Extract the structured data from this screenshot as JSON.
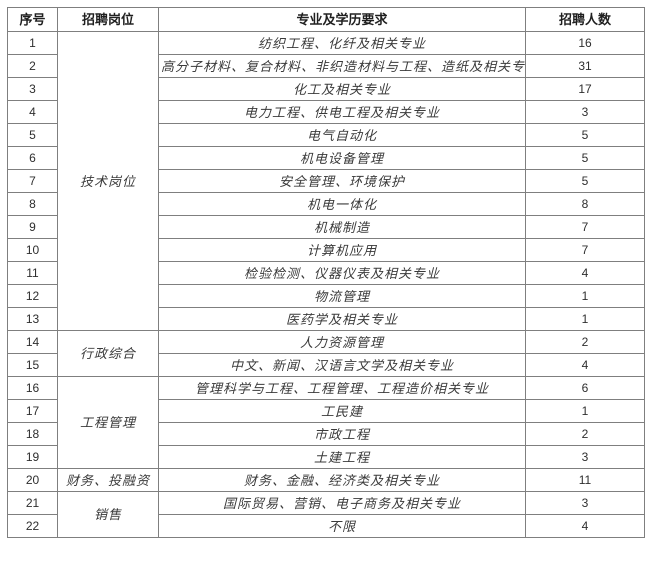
{
  "accent_colors": {
    "border": "#7f7f7f",
    "text": "#333333",
    "background": "#ffffff"
  },
  "table": {
    "headers": {
      "no": "序号",
      "position": "招聘岗位",
      "major": "专业及学历要求",
      "count": "招聘人数"
    },
    "groups": [
      {
        "position": "技术岗位",
        "rows": [
          {
            "no": "1",
            "major": "纺织工程、化纤及相关专业",
            "count": "16"
          },
          {
            "no": "2",
            "major": "高分子材料、复合材料、非织造材料与工程、造纸及相关专业",
            "count": "31"
          },
          {
            "no": "3",
            "major": "化工及相关专业",
            "count": "17"
          },
          {
            "no": "4",
            "major": "电力工程、供电工程及相关专业",
            "count": "3"
          },
          {
            "no": "5",
            "major": "电气自动化",
            "count": "5"
          },
          {
            "no": "6",
            "major": "机电设备管理",
            "count": "5"
          },
          {
            "no": "7",
            "major": "安全管理、环境保护",
            "count": "5"
          },
          {
            "no": "8",
            "major": "机电一体化",
            "count": "8"
          },
          {
            "no": "9",
            "major": "机械制造",
            "count": "7"
          },
          {
            "no": "10",
            "major": "计算机应用",
            "count": "7"
          },
          {
            "no": "11",
            "major": "检验检测、仪器仪表及相关专业",
            "count": "4"
          },
          {
            "no": "12",
            "major": "物流管理",
            "count": "1"
          },
          {
            "no": "13",
            "major": "医药学及相关专业",
            "count": "1"
          }
        ]
      },
      {
        "position": "行政综合",
        "rows": [
          {
            "no": "14",
            "major": "人力资源管理",
            "count": "2"
          },
          {
            "no": "15",
            "major": "中文、新闻、汉语言文学及相关专业",
            "count": "4"
          }
        ]
      },
      {
        "position": "工程管理",
        "rows": [
          {
            "no": "16",
            "major": "管理科学与工程、工程管理、工程造价相关专业",
            "count": "6"
          },
          {
            "no": "17",
            "major": "工民建",
            "count": "1"
          },
          {
            "no": "18",
            "major": "市政工程",
            "count": "2"
          },
          {
            "no": "19",
            "major": "土建工程",
            "count": "3"
          }
        ]
      },
      {
        "position": "财务、投融资",
        "rows": [
          {
            "no": "20",
            "major": "财务、金融、经济类及相关专业",
            "count": "11"
          }
        ]
      },
      {
        "position": "销售",
        "rows": [
          {
            "no": "21",
            "major": "国际贸易、营销、电子商务及相关专业",
            "count": "3"
          },
          {
            "no": "22",
            "major": "不限",
            "count": "4"
          }
        ]
      }
    ]
  }
}
